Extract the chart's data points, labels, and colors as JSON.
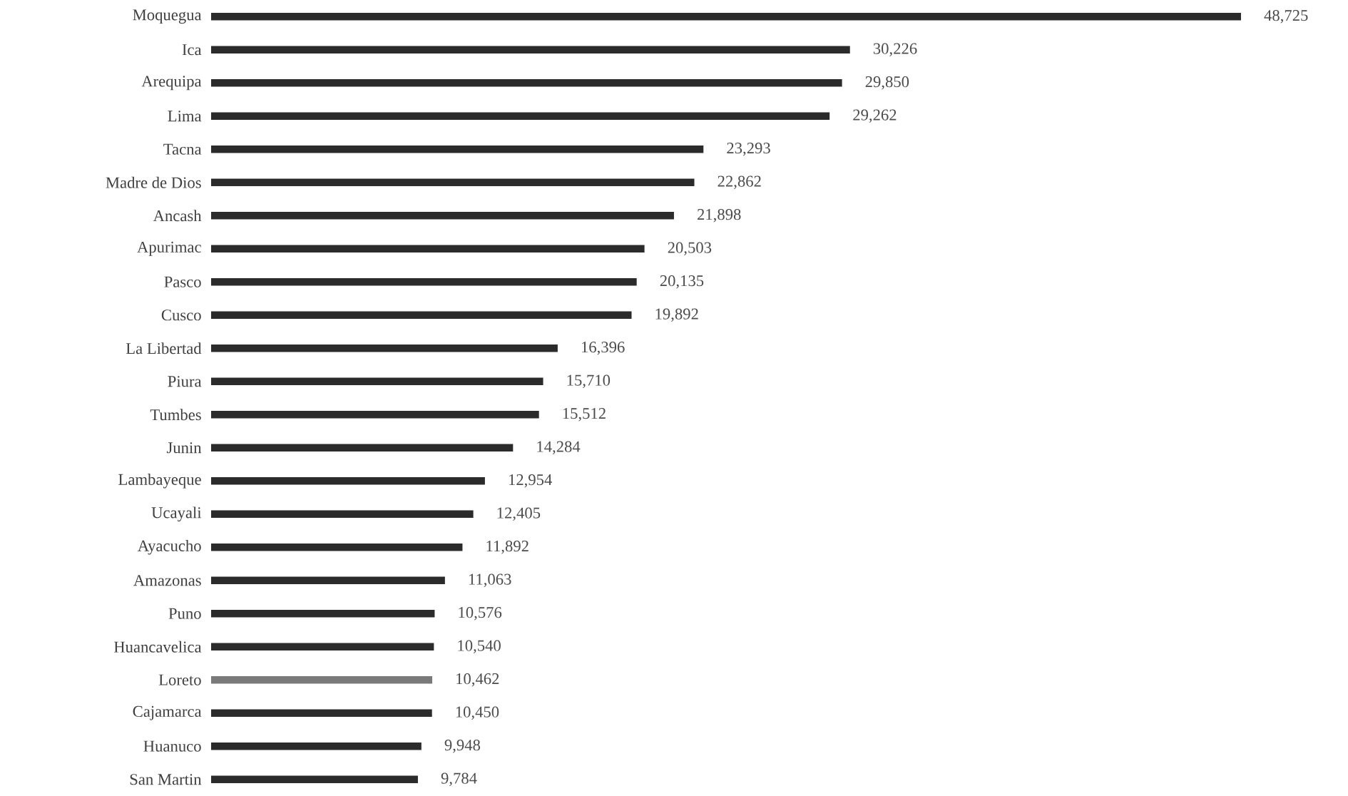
{
  "chart_data": {
    "type": "bar",
    "orientation": "horizontal",
    "categories": [
      "Moquegua",
      "Ica",
      "Arequipa",
      "Lima",
      "Tacna",
      "Madre de Dios",
      "Ancash",
      "Apurimac",
      "Pasco",
      "Cusco",
      "La Libertad",
      "Piura",
      "Tumbes",
      "Junin",
      "Lambayeque",
      "Ucayali",
      "Ayacucho",
      "Amazonas",
      "Puno",
      "Huancavelica",
      "Loreto",
      "Cajamarca",
      "Huanuco",
      "San Martin"
    ],
    "values": [
      48725,
      30226,
      29850,
      29262,
      23293,
      22862,
      21898,
      20503,
      20135,
      19892,
      16396,
      15710,
      15512,
      14284,
      12954,
      12405,
      11892,
      11063,
      10576,
      10540,
      10462,
      10450,
      9948,
      9784
    ],
    "value_labels": [
      "48,725",
      "30,226",
      "29,850",
      "29,262",
      "23,293",
      "22,862",
      "21,898",
      "20,503",
      "20,135",
      "19,892",
      "16,396",
      "15,710",
      "15,512",
      "14,284",
      "12,954",
      "12,405",
      "11,892",
      "11,063",
      "10,576",
      "10,540",
      "10,462",
      "10,450",
      "9,948",
      "9,784"
    ],
    "colors": [
      "#2b2b2b",
      "#2b2b2b",
      "#2b2b2b",
      "#2b2b2b",
      "#2b2b2b",
      "#2b2b2b",
      "#2b2b2b",
      "#2b2b2b",
      "#2b2b2b",
      "#2b2b2b",
      "#2b2b2b",
      "#2b2b2b",
      "#2b2b2b",
      "#2b2b2b",
      "#2b2b2b",
      "#2b2b2b",
      "#2b2b2b",
      "#2b2b2b",
      "#2b2b2b",
      "#2b2b2b",
      "#7a7a7a",
      "#2b2b2b",
      "#2b2b2b",
      "#2b2b2b"
    ]
  }
}
